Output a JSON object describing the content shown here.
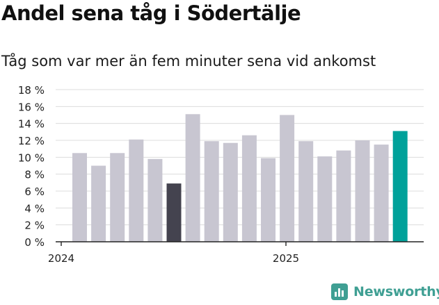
{
  "chart_data": {
    "type": "bar",
    "title": "Andel sena tåg i Södertälje",
    "subtitle": "Tåg som var mer än fem minuter sena vid ankomst",
    "values": [
      10.5,
      9.0,
      10.5,
      12.1,
      9.8,
      6.9,
      15.1,
      11.9,
      11.7,
      12.6,
      9.9,
      15.0,
      11.9,
      10.1,
      10.8,
      12.0,
      11.5,
      13.1
    ],
    "bar_colors": [
      "#c8c6d1",
      "#c8c6d1",
      "#c8c6d1",
      "#c8c6d1",
      "#c8c6d1",
      "#44434f",
      "#c8c6d1",
      "#c8c6d1",
      "#c8c6d1",
      "#c8c6d1",
      "#c8c6d1",
      "#c8c6d1",
      "#c8c6d1",
      "#c8c6d1",
      "#c8c6d1",
      "#c8c6d1",
      "#c8c6d1",
      "#00a19a"
    ],
    "yticks": [
      "0 %",
      "2 %",
      "4 %",
      "6 %",
      "8 %",
      "10 %",
      "12 %",
      "14 %",
      "16 %",
      "18 %"
    ],
    "ylim": [
      0,
      18
    ],
    "xticks": [
      "2024",
      "2025"
    ],
    "grid": true
  },
  "brand": {
    "name": "Newsworthy",
    "color": "#3f9f93",
    "icon": "bar-chart-logo-icon"
  }
}
